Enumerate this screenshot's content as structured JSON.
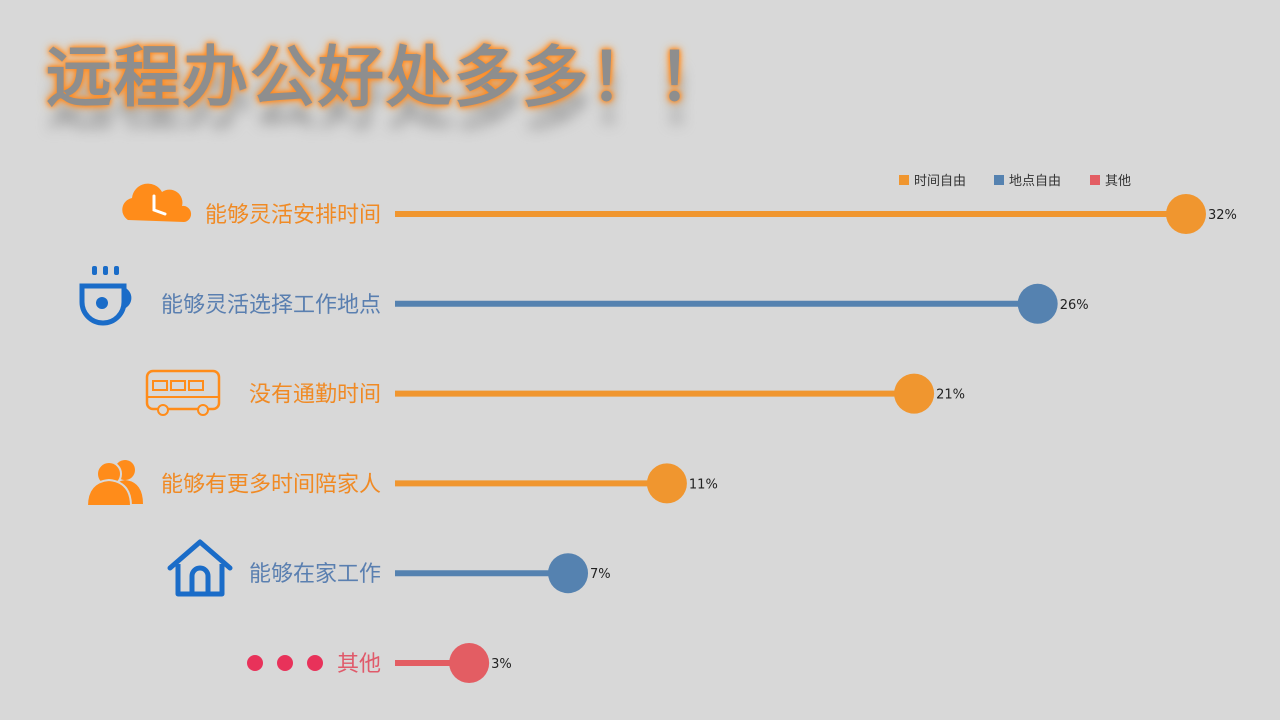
{
  "title": "远程办公好处多多！！",
  "chart_data": {
    "type": "bar",
    "style": "lollipop",
    "orientation": "horizontal",
    "categories": [
      "能够灵活安排时间",
      "能够灵活选择工作地点",
      "没有通勤时间",
      "能够有更多时间陪家人",
      "能够在家工作",
      "其他"
    ],
    "values": [
      32,
      26,
      21,
      11,
      7,
      3
    ],
    "value_labels": [
      "32%",
      "26%",
      "21%",
      "11%",
      "7%",
      "3%"
    ],
    "groups": [
      "时间自由",
      "地点自由",
      "时间自由",
      "时间自由",
      "地点自由",
      "其他"
    ],
    "icons": [
      "clock-cloud-icon",
      "coffee-cup-icon",
      "bus-icon",
      "people-icon",
      "house-icon",
      "dots-icon"
    ],
    "icon_colors": [
      "#ff8c1a",
      "#1a6cc8",
      "#ff8c1a",
      "#ff8c1a",
      "#1a6cc8",
      "#e8325a"
    ],
    "label_colors": [
      "#f08a24",
      "#5a7fb0",
      "#f08a24",
      "#f08a24",
      "#5a7fb0",
      "#e05a6a"
    ],
    "legend": [
      {
        "name": "时间自由",
        "color": "#f0962f"
      },
      {
        "name": "地点自由",
        "color": "#5582b0"
      },
      {
        "name": "其他",
        "color": "#e35d63"
      }
    ],
    "xlim": [
      0,
      32
    ],
    "unit": "%",
    "grid": false,
    "legend_position": "top-right"
  }
}
